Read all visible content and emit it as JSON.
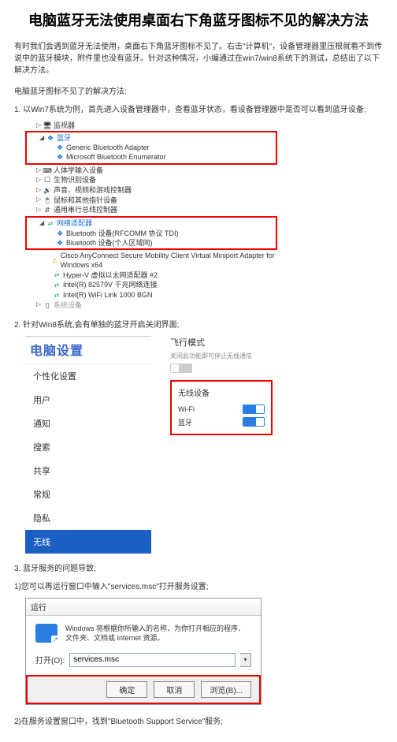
{
  "title": "电脑蓝牙无法使用桌面右下角蓝牙图标不见的解决方法",
  "intro": "有时我们会遇到蓝牙无法使用，桌面右下角蓝牙图标不见了。右击\"计算机\"，设备管理器里压根就看不到传说中的蓝牙模块，附件里也没有蓝牙。针对这种情况，小编通过在win7/win8系统下的测试，总结出了以下解决方法。",
  "subhead": "电脑蓝牙图标不见了的解决方法:",
  "step1": "1. 以Win7系统为例，首先进入设备管理器中，查看蓝牙状态，看设备管理器中是否可以看到蓝牙设备;",
  "devmgr": {
    "rows": [
      {
        "caret": "▷",
        "icon": "ico-mon",
        "label": "监视器",
        "indent": 1
      },
      {
        "caret": "◢",
        "icon": "ico-bt",
        "label": "蓝牙",
        "indent": 1,
        "hl": true,
        "hlGroup": [
          {
            "icon": "ico-bt",
            "label": "Generic Bluetooth Adapter"
          },
          {
            "icon": "ico-bt",
            "label": "Microsoft Bluetooth Enumerator"
          }
        ]
      },
      {
        "caret": "▷",
        "icon": "ico-hid",
        "label": "人体学输入设备",
        "indent": 1
      },
      {
        "caret": "▷",
        "icon": "ico-bio",
        "label": "生物识别设备",
        "indent": 1
      },
      {
        "caret": "▷",
        "icon": "ico-snd",
        "label": "声音、视频和游戏控制器",
        "indent": 1
      },
      {
        "caret": "▷",
        "icon": "ico-mouse",
        "label": "鼠标和其他指针设备",
        "indent": 1
      },
      {
        "caret": "▷",
        "icon": "ico-usb",
        "label": "通用串行总线控制器",
        "indent": 1
      },
      {
        "caret": "◢",
        "icon": "ico-net",
        "label": "网络适配器",
        "indent": 1,
        "hl": true,
        "hlGroup": [
          {
            "icon": "ico-bt",
            "label": "Bluetooth 设备(RFCOMM 协议 TDI)"
          },
          {
            "icon": "ico-bt",
            "label": "Bluetooth 设备(个人区域网)"
          }
        ]
      },
      {
        "icon": "ico-warn",
        "label": "Cisco AnyConnect Secure Mobility Client Virtual Miniport Adapter for Windows x64",
        "indent": 2
      },
      {
        "icon": "ico-net",
        "label": "Hyper-V 虚拟以太网适配器 #2",
        "indent": 2
      },
      {
        "icon": "ico-net",
        "label": "Intel(R) 82579V 千兆网络连接",
        "indent": 2
      },
      {
        "icon": "ico-net",
        "label": "Intel(R) WiFi Link 1000 BGN",
        "indent": 2
      },
      {
        "caret": "▷",
        "icon": "ico-gen",
        "label": "系统设备",
        "indent": 1,
        "faded": true
      }
    ]
  },
  "step2": "2. 针对Win8系统,会有单独的蓝牙开启关闭界面;",
  "settings": {
    "header": "电脑设置",
    "items": [
      "个性化设置",
      "用户",
      "通知",
      "搜索",
      "共享",
      "常规",
      "隐私"
    ],
    "active": "无线"
  },
  "flight": {
    "title": "飞行模式",
    "subtitle": "关闭此功能即可停止无线通信",
    "toggle": "off"
  },
  "wireless": {
    "title": "无线设备",
    "rows": [
      {
        "label": "Wi-Fi",
        "on": true
      },
      {
        "label": "蓝牙",
        "on": true
      }
    ]
  },
  "step3": "3. 蓝牙服务的问题导致;",
  "step3a": "1)您可以再运行窗口中输入\"services.msc\"打开服务设置;",
  "run": {
    "title": "运行",
    "text": "Windows 将根据你所输入的名称，为你打开相应的程序、文件夹、文档或 Internet 资源。",
    "open_label": "打开(O):",
    "value": "services.msc",
    "buttons": {
      "ok": "确定",
      "cancel": "取消",
      "browse": "浏览(B)..."
    }
  },
  "step3b": "2)在服务设置窗口中，找到\"Bluetooth Support Service\"服务;"
}
